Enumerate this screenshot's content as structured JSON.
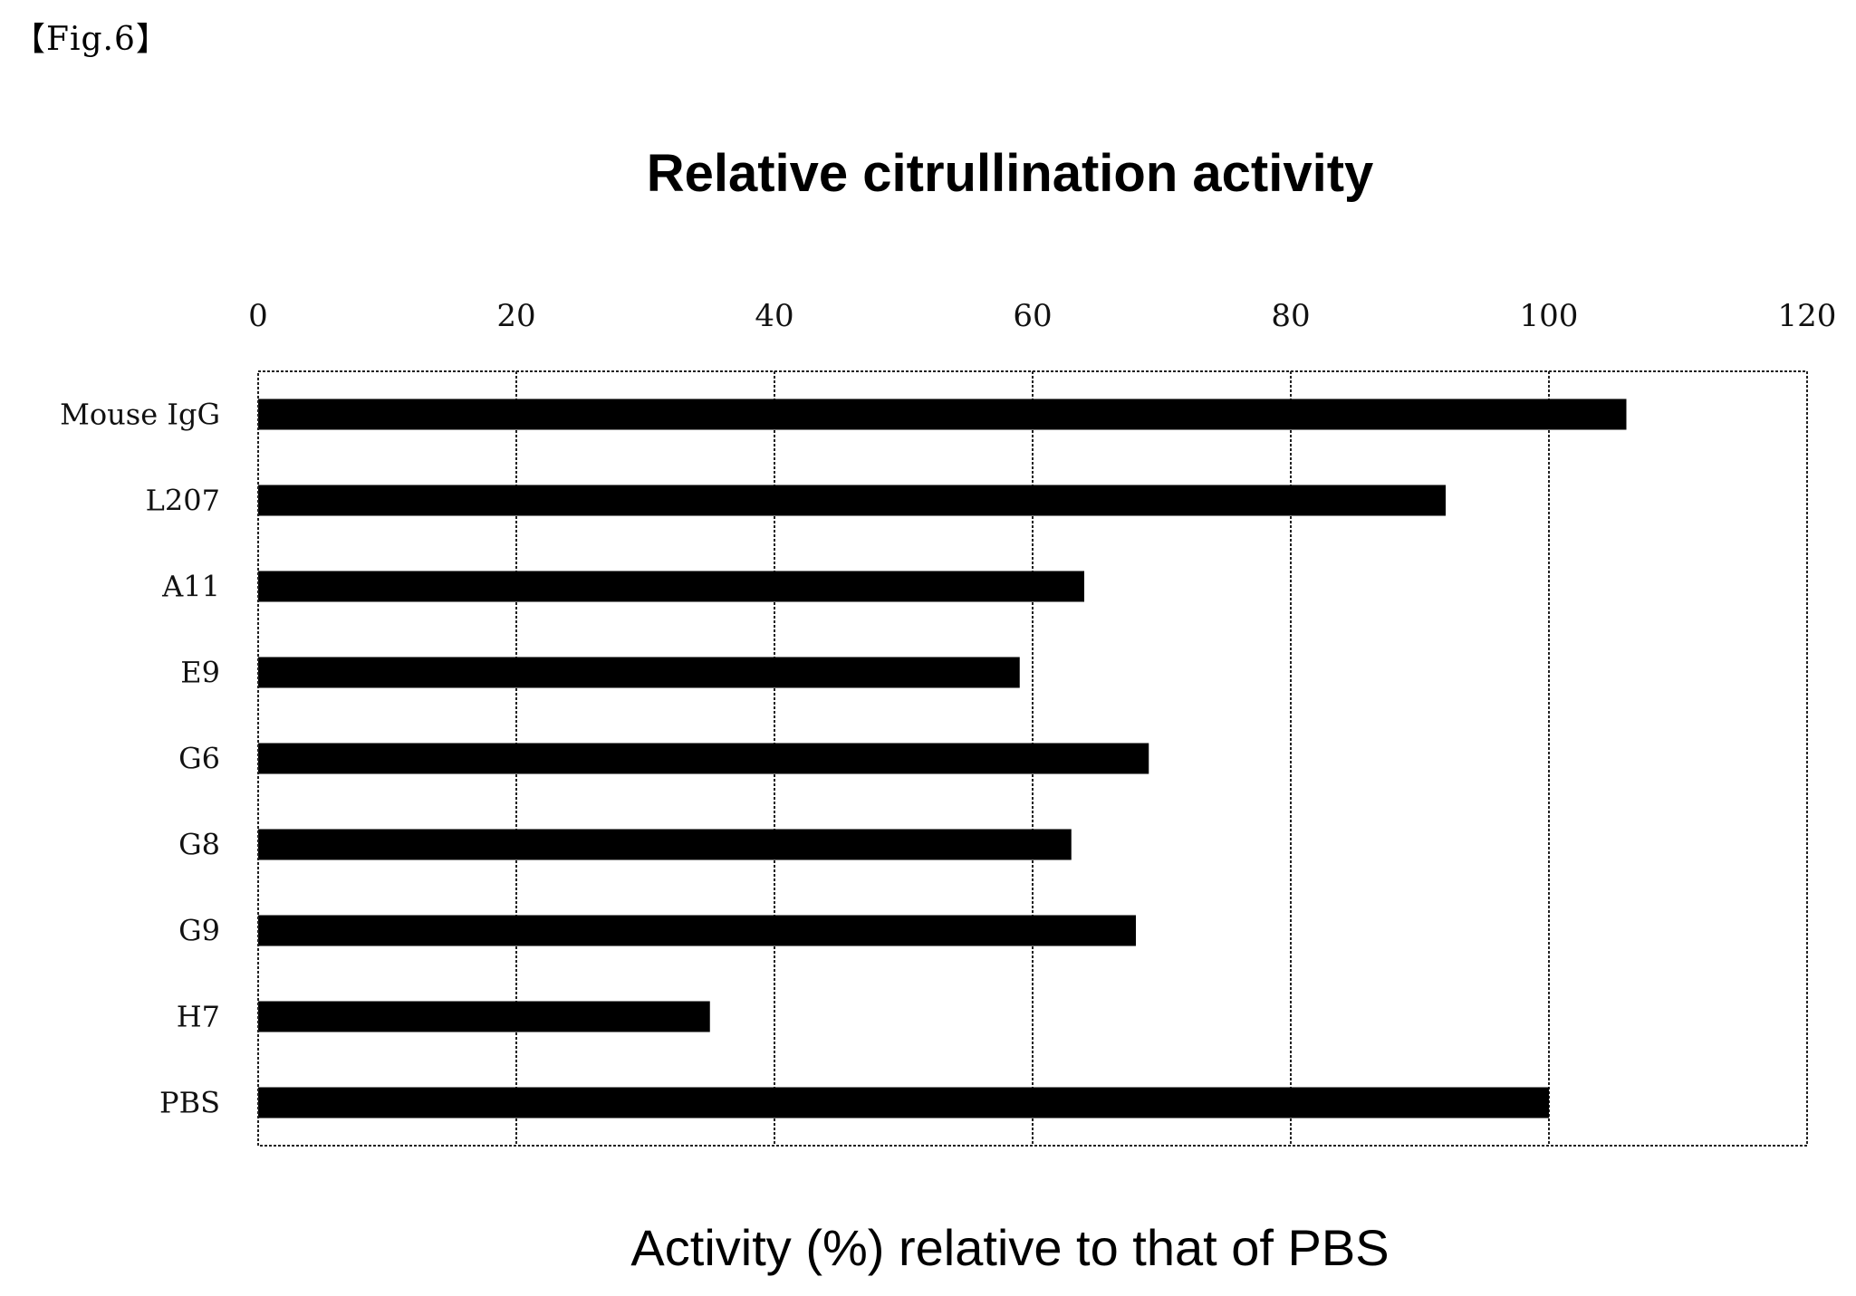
{
  "figure_label": "【Fig.6】",
  "chart_data": {
    "type": "bar",
    "orientation": "horizontal",
    "title": "Relative citrullination activity",
    "xlabel": "Activity (%) relative to that of PBS",
    "ylabel": "",
    "xlim": [
      0,
      120
    ],
    "x_ticks": [
      0,
      20,
      40,
      60,
      80,
      100,
      120
    ],
    "x_axis_position": "top",
    "grid": true,
    "legend": "none",
    "bar_color": "#000000",
    "categories": [
      "Mouse IgG",
      "L207",
      "A11",
      "E9",
      "G6",
      "G8",
      "G9",
      "H7",
      "PBS"
    ],
    "values": [
      106,
      92,
      64,
      59,
      69,
      63,
      68,
      35,
      100
    ]
  }
}
